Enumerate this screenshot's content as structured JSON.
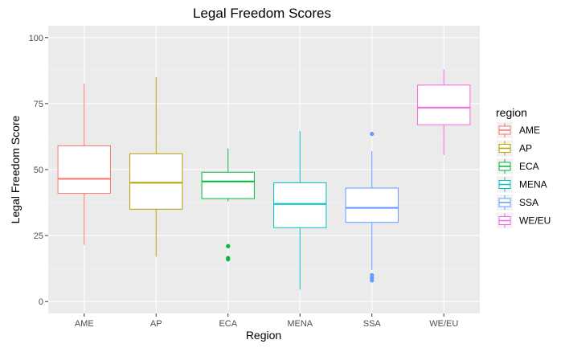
{
  "chart_data": {
    "type": "boxplot",
    "title": "Legal Freedom Scores",
    "xlabel": "Region",
    "ylabel": "Legal Freedom Score",
    "ylim": [
      -4.5,
      104.5
    ],
    "yticks": [
      0,
      25,
      50,
      75,
      100
    ],
    "categories": [
      "AME",
      "AP",
      "ECA",
      "MENA",
      "SSA",
      "WE/EU"
    ],
    "grid": true,
    "legend": {
      "title": "region",
      "position": "right"
    },
    "boxes": [
      {
        "category": "AME",
        "color": "#F8766D",
        "whisker_low": 21.5,
        "q1": 41,
        "median": 46.5,
        "q3": 59,
        "whisker_high": 82.5,
        "outliers": []
      },
      {
        "category": "AP",
        "color": "#B79F00",
        "whisker_low": 17,
        "q1": 35,
        "median": 45,
        "q3": 56,
        "whisker_high": 85,
        "outliers": []
      },
      {
        "category": "ECA",
        "color": "#00BA38",
        "whisker_low": 38,
        "q1": 39,
        "median": 45.5,
        "q3": 49,
        "whisker_high": 58,
        "outliers": [
          21,
          16.5,
          16
        ]
      },
      {
        "category": "MENA",
        "color": "#00BFC4",
        "whisker_low": 4.5,
        "q1": 28,
        "median": 37,
        "q3": 45,
        "whisker_high": 64.5,
        "outliers": []
      },
      {
        "category": "SSA",
        "color": "#619CFF",
        "whisker_low": 12,
        "q1": 30,
        "median": 35.5,
        "q3": 43,
        "whisker_high": 57,
        "outliers": [
          63.5,
          10,
          9,
          8
        ]
      },
      {
        "category": "WE/EU",
        "color": "#F564E3",
        "whisker_low": 55.5,
        "q1": 67,
        "median": 73.5,
        "q3": 82,
        "whisker_high": 88,
        "outliers": []
      }
    ]
  }
}
